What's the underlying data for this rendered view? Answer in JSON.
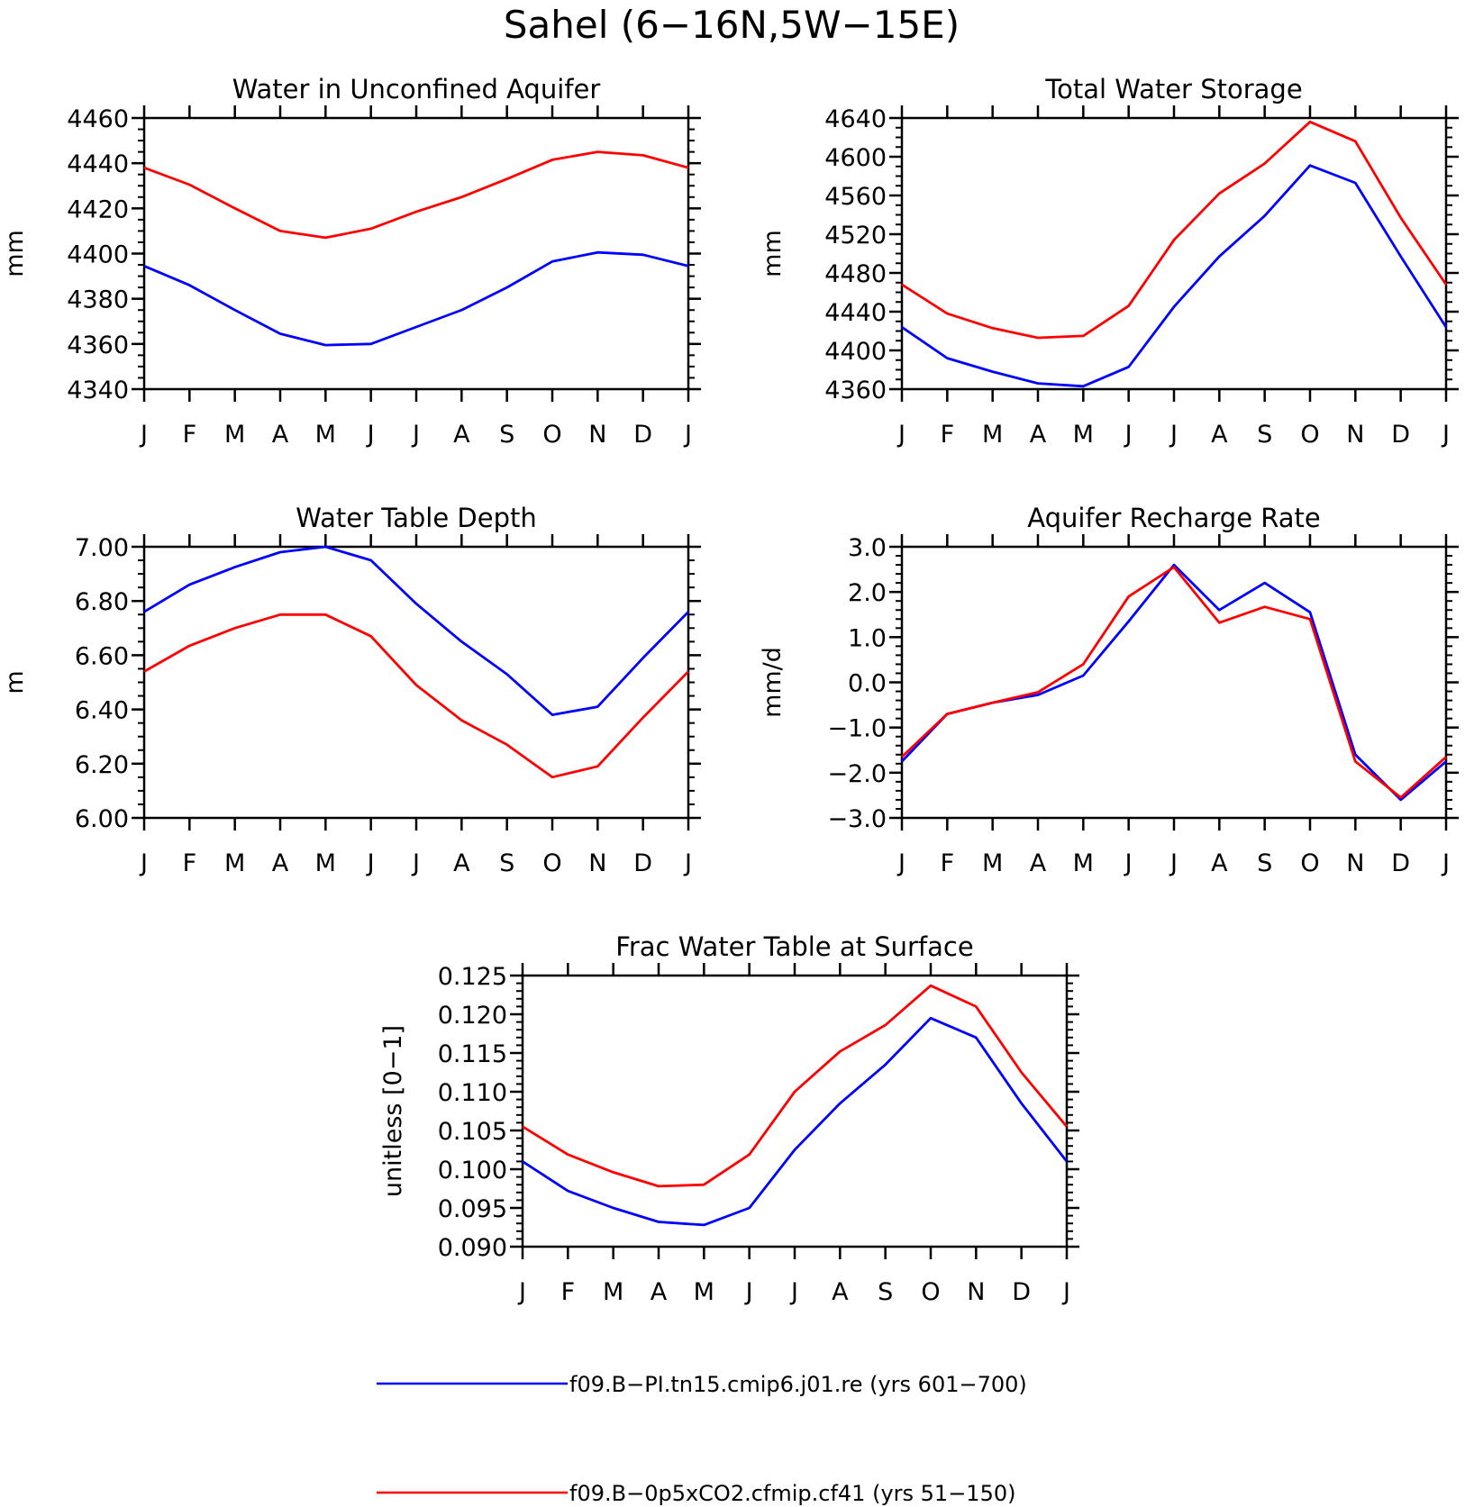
{
  "figure": {
    "title": "Sahel (6−16N,5W−15E)"
  },
  "legend": [
    {
      "label": "f09.B−PI.tn15.cmip6.j01.re (yrs 601−700)",
      "color": "#0000ff"
    },
    {
      "label": "f09.B−0p5xCO2.cfmip.cf41 (yrs 51−150)",
      "color": "#ff0000"
    }
  ],
  "chart_data": [
    {
      "type": "line",
      "title": "Water in Unconfined Aquifer",
      "ylabel": "mm",
      "categories": [
        "J",
        "F",
        "M",
        "A",
        "M",
        "J",
        "J",
        "A",
        "S",
        "O",
        "N",
        "D",
        "J"
      ],
      "ylim": [
        4340,
        4460
      ],
      "yticks": [
        4340,
        4360,
        4380,
        4400,
        4420,
        4440,
        4460
      ],
      "ytick_labels": [
        "4340",
        "4360",
        "4380",
        "4400",
        "4420",
        "4440",
        "4460"
      ],
      "yminor": 5,
      "series": [
        {
          "name": "f09.B−PI.tn15.cmip6.j01.re (yrs 601−700)",
          "color": "#0000ff",
          "values": [
            4394.5,
            4386,
            4375,
            4364.5,
            4359.5,
            4360,
            4367.5,
            4375,
            4385,
            4396.5,
            4400.5,
            4399.5,
            4394.5
          ]
        },
        {
          "name": "f09.B−0p5xCO2.cfmip.cf41 (yrs 51−150)",
          "color": "#ff0000",
          "values": [
            4438,
            4430.5,
            4420,
            4410,
            4407,
            4411,
            4418.5,
            4425,
            4433,
            4441.5,
            4445,
            4443.5,
            4438
          ]
        }
      ]
    },
    {
      "type": "line",
      "title": "Total Water Storage",
      "ylabel": "mm",
      "categories": [
        "J",
        "F",
        "M",
        "A",
        "M",
        "J",
        "J",
        "A",
        "S",
        "O",
        "N",
        "D",
        "J"
      ],
      "ylim": [
        4360,
        4640
      ],
      "yticks": [
        4360,
        4400,
        4440,
        4480,
        4520,
        4560,
        4600,
        4640
      ],
      "ytick_labels": [
        "4360",
        "4400",
        "4440",
        "4480",
        "4520",
        "4560",
        "4600",
        "4640"
      ],
      "yminor": 10,
      "series": [
        {
          "name": "f09.B−PI.tn15.cmip6.j01.re (yrs 601−700)",
          "color": "#0000ff",
          "values": [
            4424,
            4392,
            4378,
            4366,
            4363,
            4383,
            4445,
            4497,
            4539,
            4591,
            4573,
            4497,
            4424
          ]
        },
        {
          "name": "f09.B−0p5xCO2.cfmip.cf41 (yrs 51−150)",
          "color": "#ff0000",
          "values": [
            4468,
            4438,
            4423,
            4413,
            4415,
            4446,
            4514,
            4562,
            4593,
            4636,
            4616,
            4537,
            4468
          ]
        }
      ]
    },
    {
      "type": "line",
      "title": "Water Table Depth",
      "ylabel": "m",
      "categories": [
        "J",
        "F",
        "M",
        "A",
        "M",
        "J",
        "J",
        "A",
        "S",
        "O",
        "N",
        "D",
        "J"
      ],
      "ylim": [
        6.0,
        7.0
      ],
      "yticks": [
        6.0,
        6.2,
        6.4,
        6.6,
        6.8,
        7.0
      ],
      "ytick_labels": [
        "6.00",
        "6.20",
        "6.40",
        "6.60",
        "6.80",
        "7.00"
      ],
      "yminor": 0.05,
      "series": [
        {
          "name": "f09.B−PI.tn15.cmip6.j01.re (yrs 601−700)",
          "color": "#0000ff",
          "values": [
            6.76,
            6.86,
            6.925,
            6.98,
            7.0,
            6.95,
            6.79,
            6.65,
            6.53,
            6.38,
            6.41,
            6.59,
            6.76
          ]
        },
        {
          "name": "f09.B−0p5xCO2.cfmip.cf41 (yrs 51−150)",
          "color": "#ff0000",
          "values": [
            6.54,
            6.635,
            6.7,
            6.75,
            6.75,
            6.67,
            6.49,
            6.36,
            6.27,
            6.15,
            6.19,
            6.37,
            6.54
          ]
        }
      ]
    },
    {
      "type": "line",
      "title": "Aquifer Recharge Rate",
      "ylabel": "mm/d",
      "categories": [
        "J",
        "F",
        "M",
        "A",
        "M",
        "J",
        "J",
        "A",
        "S",
        "O",
        "N",
        "D",
        "J"
      ],
      "ylim": [
        -3.0,
        3.0
      ],
      "yticks": [
        -3,
        -2,
        -1,
        0,
        1,
        2,
        3
      ],
      "ytick_labels": [
        "−3.0",
        "−2.0",
        "−1.0",
        "0.0",
        "1.0",
        "2.0",
        "3.0"
      ],
      "yminor": 0.2,
      "series": [
        {
          "name": "f09.B−PI.tn15.cmip6.j01.re (yrs 601−700)",
          "color": "#0000ff",
          "values": [
            -1.75,
            -0.7,
            -0.45,
            -0.28,
            0.15,
            1.35,
            2.6,
            1.6,
            2.2,
            1.55,
            -1.6,
            -2.6,
            -1.75
          ]
        },
        {
          "name": "f09.B−0p5xCO2.cfmip.cf41 (yrs 51−150)",
          "color": "#ff0000",
          "values": [
            -1.65,
            -0.7,
            -0.45,
            -0.22,
            0.4,
            1.9,
            2.55,
            1.32,
            1.67,
            1.4,
            -1.75,
            -2.55,
            -1.65
          ]
        }
      ]
    },
    {
      "type": "line",
      "title": "Frac Water Table at Surface",
      "ylabel": "unitless [0−1]",
      "categories": [
        "J",
        "F",
        "M",
        "A",
        "M",
        "J",
        "J",
        "A",
        "S",
        "O",
        "N",
        "D",
        "J"
      ],
      "ylim": [
        0.09,
        0.125
      ],
      "yticks": [
        0.09,
        0.095,
        0.1,
        0.105,
        0.11,
        0.115,
        0.12,
        0.125
      ],
      "ytick_labels": [
        "0.090",
        "0.095",
        "0.100",
        "0.105",
        "0.110",
        "0.115",
        "0.120",
        "0.125"
      ],
      "yminor": 0.001,
      "series": [
        {
          "name": "f09.B−PI.tn15.cmip6.j01.re (yrs 601−700)",
          "color": "#0000ff",
          "values": [
            0.101,
            0.0972,
            0.095,
            0.0932,
            0.0928,
            0.095,
            0.1025,
            0.1085,
            0.1135,
            0.1195,
            0.117,
            0.1085,
            0.101
          ]
        },
        {
          "name": "f09.B−0p5xCO2.cfmip.cf41 (yrs 51−150)",
          "color": "#ff0000",
          "values": [
            0.1055,
            0.1019,
            0.0996,
            0.0978,
            0.098,
            0.1019,
            0.11,
            0.1152,
            0.1186,
            0.1237,
            0.121,
            0.1125,
            0.1055
          ]
        }
      ]
    }
  ]
}
